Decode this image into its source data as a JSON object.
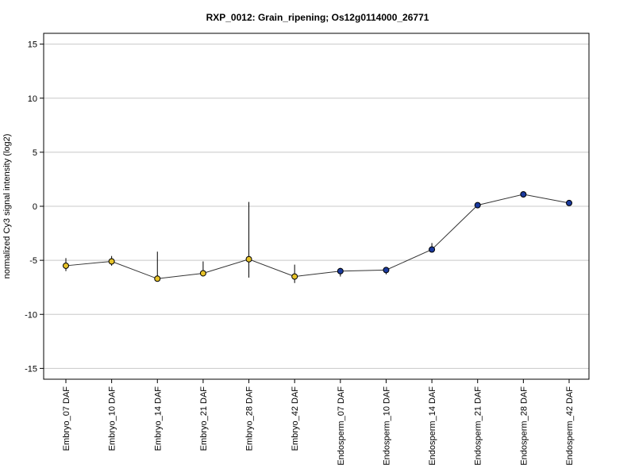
{
  "chart_data": {
    "type": "line",
    "title": "RXP_0012: Grain_ripening; Os12g0114000_26771",
    "ylabel": "normalized Cy3 signal intensity (log2)",
    "xlabel": "",
    "ylim": [
      -16,
      16
    ],
    "yticks": [
      -15,
      -10,
      -5,
      0,
      5,
      10,
      15
    ],
    "grid": true,
    "categories": [
      "Embryo_07 DAF",
      "Embryo_10 DAF",
      "Embryo_14 DAF",
      "Embryo_21 DAF",
      "Embryo_28 DAF",
      "Embryo_42 DAF",
      "Endosperm_07 DAF",
      "Endosperm_10 DAF",
      "Endosperm_14 DAF",
      "Endosperm_21 DAF",
      "Endosperm_28 DAF",
      "Endosperm_42 DAF"
    ],
    "values": [
      -5.5,
      -5.1,
      -6.7,
      -6.2,
      -4.9,
      -6.5,
      -6.0,
      -5.9,
      -4.0,
      0.1,
      1.1,
      0.3
    ],
    "error_low": [
      -6.0,
      -5.5,
      -6.7,
      -6.2,
      -6.6,
      -7.1,
      -6.5,
      -6.3,
      -4.2,
      0.0,
      1.0,
      0.2
    ],
    "error_high": [
      -4.8,
      -4.6,
      -4.2,
      -5.1,
      0.4,
      -5.4,
      -5.7,
      -5.7,
      -3.4,
      0.2,
      1.2,
      0.4
    ],
    "point_colors": [
      "#e6c229",
      "#e6c229",
      "#e6c229",
      "#e6c229",
      "#e6c229",
      "#e6c229",
      "#1a3a9e",
      "#1a3a9e",
      "#1a3a9e",
      "#1a3a9e",
      "#1a3a9e",
      "#1a3a9e"
    ],
    "line_color": "#333333"
  }
}
